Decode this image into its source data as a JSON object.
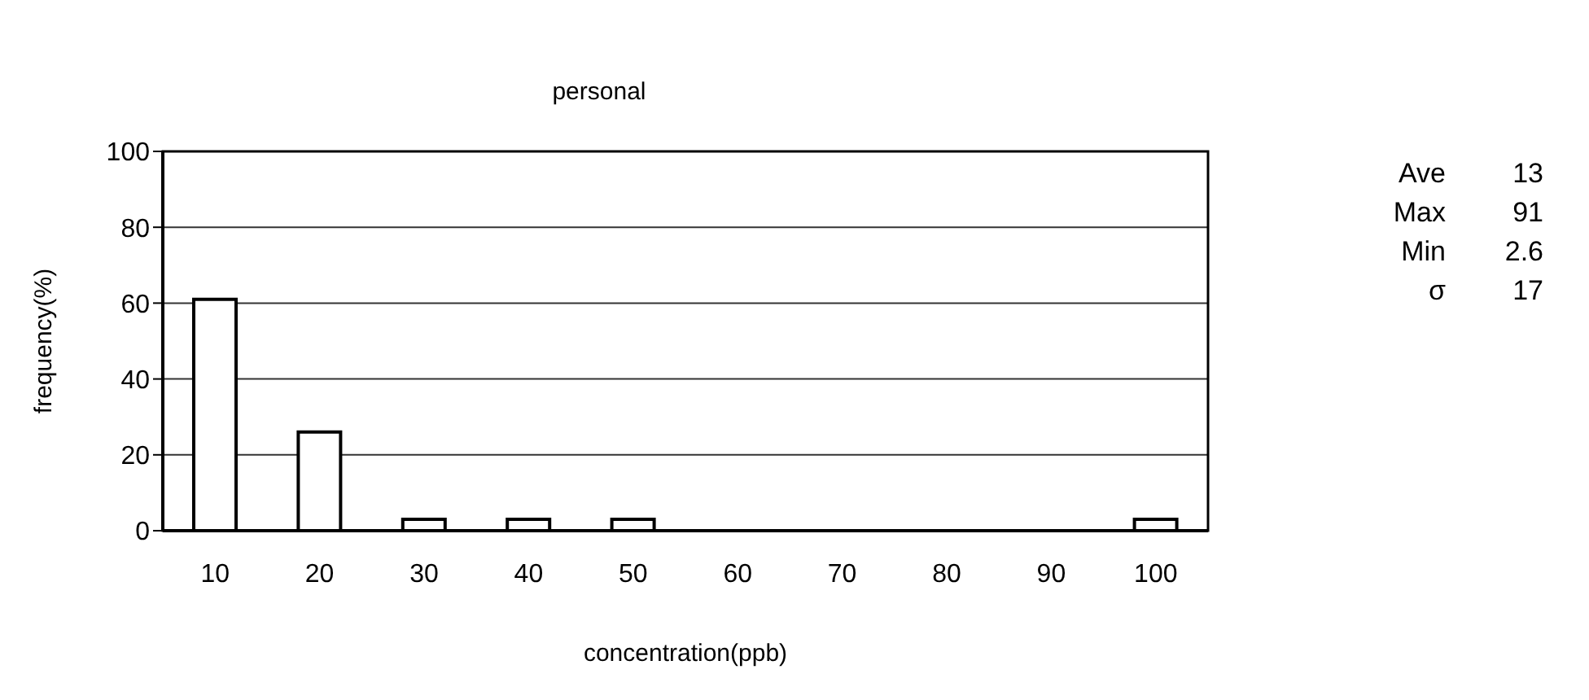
{
  "chart_data": {
    "type": "bar",
    "title": "personal",
    "xlabel": "concentration(ppb)",
    "ylabel": "frequency(%)",
    "categories": [
      "10",
      "20",
      "30",
      "40",
      "50",
      "60",
      "70",
      "80",
      "90",
      "100"
    ],
    "values": [
      61,
      26,
      3,
      3,
      3,
      0,
      0,
      0,
      0,
      3
    ],
    "color": "#ffffff",
    "ylim": [
      0,
      100
    ],
    "yticks": [
      0,
      20,
      40,
      60,
      80,
      100
    ],
    "grid": "y",
    "annotations": [
      "Ave 13",
      "Max 91",
      "Min 2.6",
      "σ 17"
    ]
  }
}
